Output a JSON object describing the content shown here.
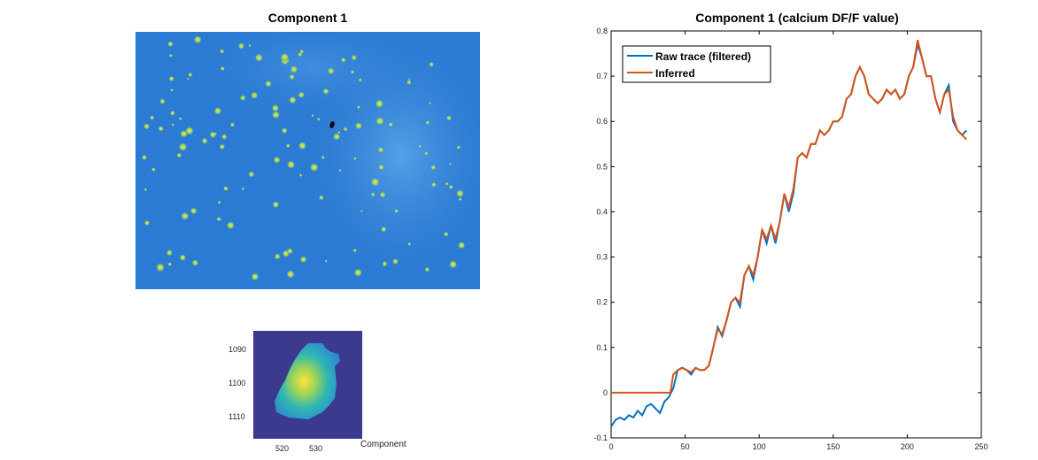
{
  "left_panel": {
    "title": "Component 1"
  },
  "zoom_panel": {
    "yticks": [
      "1090",
      "1100",
      "1110"
    ],
    "xticks": [
      "520",
      "530"
    ],
    "caption": "Component"
  },
  "colors": {
    "raw": "#0072BD",
    "inferred": "#D95319",
    "map_bg": "#2f7fd6",
    "map_dark": "#3b3a8f"
  },
  "chart_data": {
    "type": "line",
    "title": "Component 1 (calcium DF/F value)",
    "xlabel": "",
    "ylabel": "",
    "xlim": [
      0,
      250
    ],
    "ylim": [
      -0.1,
      0.8
    ],
    "xticks": [
      0,
      50,
      100,
      150,
      200,
      250
    ],
    "yticks": [
      -0.1,
      0,
      0.1,
      0.2,
      0.3,
      0.4,
      0.5,
      0.6,
      0.7,
      0.8
    ],
    "xtick_labels": [
      "0",
      "50",
      "100",
      "150",
      "200",
      "250"
    ],
    "ytick_labels": [
      "-0.1",
      "0",
      "0.1",
      "0.2",
      "0.3",
      "0.4",
      "0.5",
      "0.6",
      "0.7",
      "0.8"
    ],
    "legend_position": "top-left",
    "grid": false,
    "series": [
      {
        "name": "Raw trace (filtered)",
        "x": [
          0,
          3,
          6,
          9,
          12,
          15,
          18,
          21,
          24,
          27,
          30,
          33,
          36,
          39,
          42,
          45,
          48,
          51,
          54,
          57,
          60,
          63,
          66,
          69,
          72,
          75,
          78,
          81,
          84,
          87,
          90,
          93,
          96,
          99,
          102,
          105,
          108,
          111,
          114,
          117,
          120,
          123,
          126,
          129,
          132,
          135,
          138,
          141,
          144,
          147,
          150,
          153,
          156,
          159,
          162,
          165,
          168,
          171,
          174,
          177,
          180,
          183,
          186,
          189,
          192,
          195,
          198,
          201,
          204,
          207,
          210,
          213,
          216,
          219,
          222,
          225,
          228,
          231,
          234,
          237,
          240
        ],
        "y": [
          -0.075,
          -0.06,
          -0.055,
          -0.06,
          -0.05,
          -0.055,
          -0.04,
          -0.05,
          -0.03,
          -0.025,
          -0.035,
          -0.045,
          -0.02,
          -0.01,
          0.01,
          0.05,
          0.055,
          0.05,
          0.04,
          0.055,
          0.05,
          0.05,
          0.06,
          0.1,
          0.145,
          0.125,
          0.16,
          0.2,
          0.21,
          0.19,
          0.26,
          0.28,
          0.25,
          0.3,
          0.36,
          0.33,
          0.37,
          0.33,
          0.38,
          0.44,
          0.4,
          0.44,
          0.52,
          0.53,
          0.52,
          0.55,
          0.55,
          0.58,
          0.57,
          0.58,
          0.6,
          0.6,
          0.61,
          0.65,
          0.66,
          0.7,
          0.72,
          0.7,
          0.66,
          0.65,
          0.64,
          0.65,
          0.67,
          0.66,
          0.67,
          0.65,
          0.66,
          0.7,
          0.72,
          0.77,
          0.74,
          0.7,
          0.7,
          0.65,
          0.62,
          0.66,
          0.68,
          0.6,
          0.58,
          0.57,
          0.58
        ]
      },
      {
        "name": "Inferred",
        "x": [
          0,
          3,
          6,
          9,
          12,
          15,
          18,
          21,
          24,
          27,
          30,
          33,
          36,
          39,
          40,
          42,
          45,
          48,
          51,
          54,
          57,
          60,
          63,
          66,
          69,
          72,
          75,
          78,
          81,
          84,
          87,
          90,
          93,
          96,
          99,
          102,
          105,
          108,
          111,
          114,
          117,
          120,
          123,
          126,
          129,
          132,
          135,
          138,
          141,
          144,
          147,
          150,
          153,
          156,
          159,
          162,
          165,
          168,
          171,
          174,
          177,
          180,
          183,
          186,
          189,
          192,
          195,
          198,
          201,
          204,
          207,
          210,
          213,
          216,
          219,
          222,
          225,
          228,
          231,
          234,
          237,
          240
        ],
        "y": [
          0,
          0,
          0,
          0,
          0,
          0,
          0,
          0,
          0,
          0,
          0,
          0,
          0,
          0,
          0,
          0.04,
          0.05,
          0.055,
          0.05,
          0.045,
          0.055,
          0.05,
          0.05,
          0.06,
          0.1,
          0.14,
          0.13,
          0.16,
          0.2,
          0.21,
          0.2,
          0.26,
          0.28,
          0.26,
          0.3,
          0.36,
          0.34,
          0.37,
          0.34,
          0.38,
          0.44,
          0.41,
          0.45,
          0.52,
          0.53,
          0.52,
          0.55,
          0.55,
          0.58,
          0.57,
          0.58,
          0.6,
          0.6,
          0.61,
          0.65,
          0.66,
          0.7,
          0.72,
          0.7,
          0.66,
          0.65,
          0.64,
          0.65,
          0.67,
          0.66,
          0.67,
          0.65,
          0.66,
          0.7,
          0.72,
          0.78,
          0.74,
          0.7,
          0.7,
          0.65,
          0.62,
          0.66,
          0.67,
          0.61,
          0.58,
          0.57,
          0.56
        ]
      }
    ]
  }
}
